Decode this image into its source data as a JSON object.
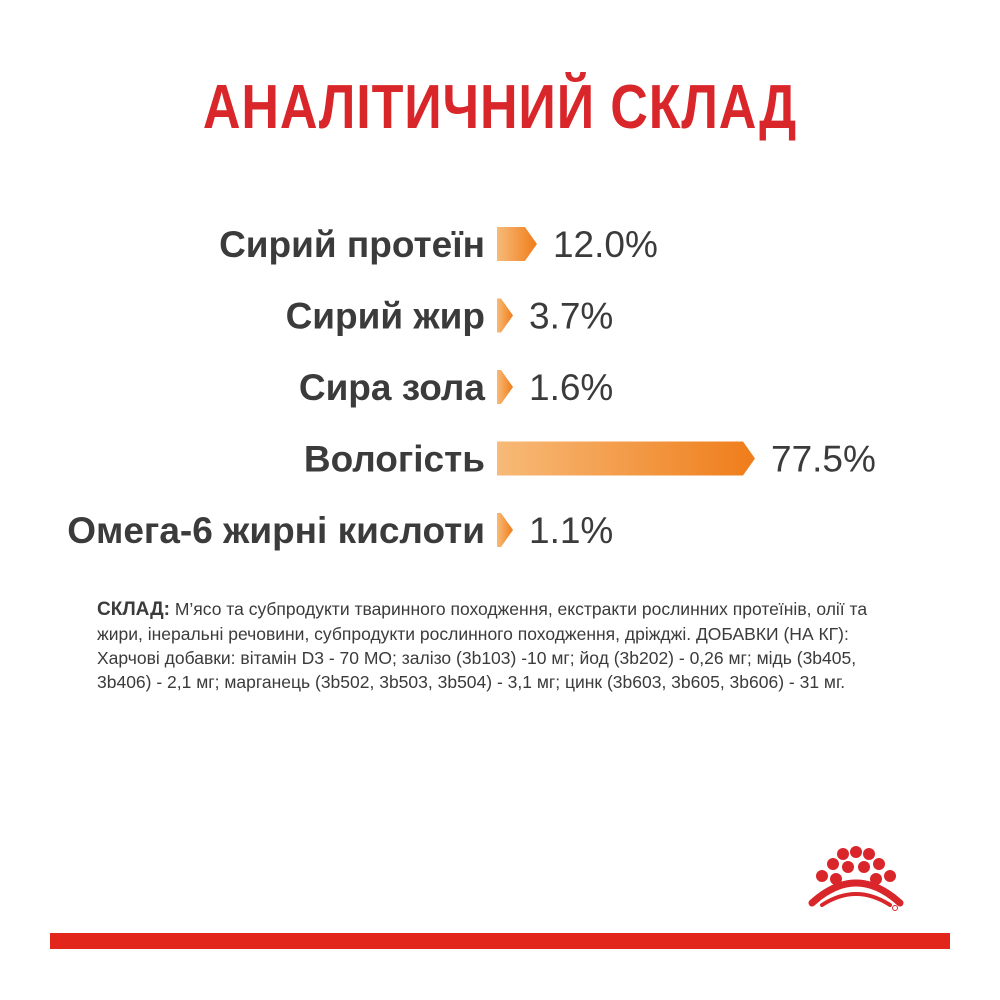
{
  "title": "АНАЛІТИЧНИЙ СКЛАД",
  "colors": {
    "title": "#d9262a",
    "bar_light": "#f7ba78",
    "bar_dark": "#ef7d1a",
    "text": "#3b3b3b",
    "brand_red": "#e2261c"
  },
  "chart_data": {
    "type": "bar",
    "orientation": "horizontal",
    "categories": [
      "Сирий протеїн",
      "Сирий жир",
      "Сира зола",
      "Вологість",
      "Омега-6 жирні кислоти"
    ],
    "values": [
      12.0,
      3.7,
      1.6,
      77.5,
      1.1
    ],
    "value_labels": [
      "12.0%",
      "3.7%",
      "1.6%",
      "77.5%",
      "1.1%"
    ],
    "unit": "%",
    "xlim": [
      0,
      77.5
    ],
    "grid": false,
    "legend": "none"
  },
  "composition": {
    "title": "СКЛАД:",
    "text": " М’ясо та субпродукти тваринного походження, екстракти рослинних протеїнів, олії та жири, інеральні речовини, субпродукти рослинного походження, дріжджі. ДОБАВКИ (НА КГ): Харчові добавки: вітамін D3 - 70 МО; залізо (3b103) -10 мг; йод (3b202) - 0,26 мг; мідь (3b405, 3b406) - 2,1 мг; марганець (3b502, 3b503, 3b504) - 3,1 мг; цинк (3b603, 3b605, 3b606) - 31 мг."
  },
  "logo": {
    "icon": "royal-crown-icon"
  }
}
